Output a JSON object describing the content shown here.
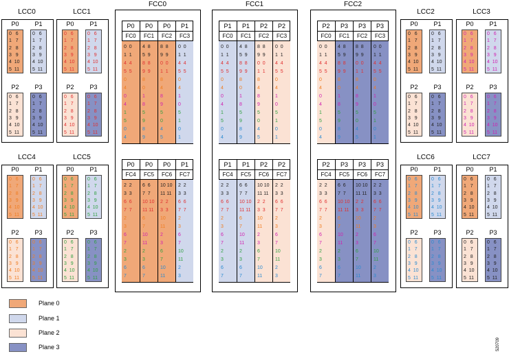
{
  "colors": {
    "plane0": "#f0a878",
    "plane1": "#d0d8ec",
    "plane2": "#fbe2d4",
    "plane3": "#8791c4"
  },
  "lcc_titles": [
    "LCC0",
    "LCC1",
    "LCC2",
    "LCC3",
    "LCC4",
    "LCC5",
    "LCC6",
    "LCC7"
  ],
  "fcc_titles": [
    "FCC0",
    "FCC1",
    "FCC2"
  ],
  "plane_labels": [
    "P0",
    "P1",
    "P2",
    "P3"
  ],
  "fcc_top_headers": [
    {
      "planes": [
        "P0",
        "P0",
        "P0",
        "P1"
      ],
      "fcs": [
        "FC0",
        "FC1",
        "FC2",
        "FC3"
      ]
    },
    {
      "planes": [
        "P1",
        "P1",
        "P2",
        "P2"
      ],
      "fcs": [
        "FC0",
        "FC1",
        "FC2",
        "FC3"
      ]
    },
    {
      "planes": [
        "P2",
        "P3",
        "P3",
        "P3"
      ],
      "fcs": [
        "FC0",
        "FC1",
        "FC2",
        "FC3"
      ]
    }
  ],
  "fcc_bottom_headers": [
    {
      "planes": [
        "P0",
        "P0",
        "P0",
        "P1"
      ],
      "fcs": [
        "FC4",
        "FC5",
        "FC6",
        "FC7"
      ]
    },
    {
      "planes": [
        "P1",
        "P1",
        "P2",
        "P2"
      ],
      "fcs": [
        "FC4",
        "FC5",
        "FC6",
        "FC7"
      ]
    },
    {
      "planes": [
        "P2",
        "P3",
        "P3",
        "P3"
      ],
      "fcs": [
        "FC4",
        "FC5",
        "FC6",
        "FC7"
      ]
    }
  ],
  "legend": [
    "Plane 0",
    "Plane 1",
    "Plane 2",
    "Plane 3"
  ],
  "figure_id": "520709",
  "lcc_slot_rows": [
    "0   6",
    "1   7",
    "2   8",
    "3   9",
    "4  10",
    "5  11"
  ],
  "fcc_top_rows": {
    "c0": [
      "0  0",
      "1  1",
      "4  4",
      "5  5",
      "0",
      "4",
      "0",
      "4",
      "1",
      "5",
      "0",
      "4"
    ],
    "c1": [
      "4  8",
      "5  9",
      "8  8",
      "9  9",
      "8",
      "0",
      "1",
      "8",
      "5",
      "9",
      "8",
      "9"
    ],
    "c2": [
      "8  8",
      "9  9",
      "0  0",
      "1  1",
      "8",
      "4",
      "8",
      "9",
      "5",
      "0",
      "4",
      "5"
    ],
    "c3": [
      "0  0",
      "1  1",
      "4  4",
      "5  5",
      "0",
      "4",
      "1",
      "0",
      "5",
      "1",
      "0",
      "1"
    ]
  },
  "fcc_bottom_rows": {
    "c0": [
      "2  2",
      "3  3",
      "6  6",
      "7  7",
      "2",
      "3",
      "6",
      "7",
      "2",
      "3",
      "6",
      "7"
    ],
    "c1": [
      "6  6",
      "7  7",
      "10 10",
      "11 11",
      "6",
      "7",
      "10",
      "11",
      "2",
      "3",
      "6",
      "7"
    ],
    "c2": [
      "10 10",
      "11 11",
      "2  2",
      "3  3",
      "10",
      "11",
      "2",
      "3",
      "6",
      "7",
      "10",
      "11"
    ],
    "c3": [
      "2  2",
      "3  3",
      "6  6",
      "7  7",
      "2",
      "3",
      "6",
      "7",
      "10",
      "11",
      "2",
      "3"
    ]
  }
}
